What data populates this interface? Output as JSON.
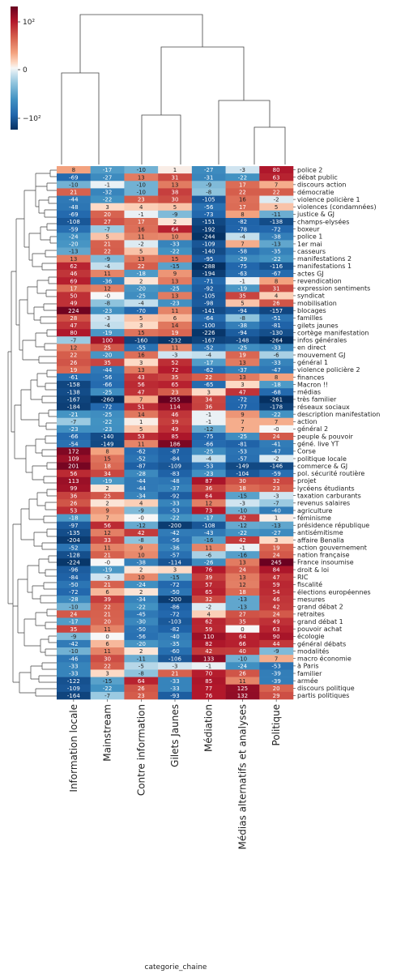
{
  "chart_data": {
    "type": "heatmap",
    "title": "",
    "xlabel": "categorie_chaine",
    "ylabel": "",
    "colorbar": {
      "colormap": "RdBu_r (red positive, blue negative)",
      "scale": "symlog",
      "ticks": [
        "10²",
        "0",
        "−10²"
      ],
      "tick_values": [
        100,
        0,
        -100
      ],
      "high_color": "#67001f",
      "mid_color": "#f7f7f7",
      "low_color": "#053061"
    },
    "columns": [
      "Information locale",
      "Mainstream",
      "Contre information",
      "Gilets Jaunes",
      "Médiation",
      "Médias alternatifs et analyses",
      "Politique"
    ],
    "rows": [
      "police 2",
      "débat public",
      "discours action",
      "démocratie",
      "violence policière 1",
      "violences (condamnées)",
      "justice & GJ",
      "champs-elysées",
      "boxeur",
      "police 1",
      "1er mai",
      "casseurs",
      "manifestations 2",
      "manifestations 1",
      "actes GJ",
      "revendication",
      "expression sentiments",
      "syndicat",
      "mobilisation",
      "blocages",
      "familles",
      "gilets jaunes",
      "cortège manifestation",
      "infos générales",
      "en direct",
      "mouvement GJ",
      "général 1",
      "violence policière 2",
      "finances",
      "Macron !!",
      "médias",
      "très familier",
      "réseaux sociaux",
      "description manifestation",
      "action",
      "général 2",
      "peuple & pouvoir",
      "géné. live YT",
      "Corse",
      "politique locale",
      "commerce & GJ",
      "pol. sécurité routière",
      "projet",
      "lycéens étudiants",
      "taxation carburants",
      "revenus salaires",
      "agriculture",
      "féminisme",
      "présidence république",
      "antisémitisme",
      "affaire Benalla",
      "action gouvernement",
      "nation française",
      "France insoumise",
      "droit & loi",
      "RIC",
      "fiscalité",
      "élections européennes",
      "mesures",
      "grand débat 2",
      "retraites",
      "grand débat 1",
      "pouvoir achat",
      "écologie",
      "général débats",
      "modalités",
      "macro économie",
      "à Paris",
      "familier",
      "armée",
      "discours politique",
      "partis politiques"
    ],
    "values": [
      [
        "8",
        "-17",
        "-10",
        "1",
        "-27",
        "-3",
        "80"
      ],
      [
        "-69",
        "-27",
        "13",
        "31",
        "-31",
        "-22",
        "63"
      ],
      [
        "-10",
        "-1",
        "-10",
        "13",
        "-9",
        "17",
        "7"
      ],
      [
        "21",
        "-32",
        "-10",
        "38",
        "-8",
        "22",
        "22"
      ],
      [
        "-44",
        "-22",
        "23",
        "30",
        "-105",
        "16",
        "-2"
      ],
      [
        "-48",
        "3",
        "4",
        "5",
        "-56",
        "17",
        "5"
      ],
      [
        "-69",
        "20",
        "-1",
        "-9",
        "-73",
        "8",
        "-11"
      ],
      [
        "-108",
        "27",
        "17",
        "2",
        "-151",
        "-82",
        "-138"
      ],
      [
        "-59",
        "-7",
        "16",
        "64",
        "-192",
        "-78",
        "-72"
      ],
      [
        "-24",
        "5",
        "11",
        "10",
        "-244",
        "-4",
        "-38"
      ],
      [
        "-20",
        "21",
        "-2",
        "-33",
        "-109",
        "7",
        "-13"
      ],
      [
        "-13",
        "22",
        "5",
        "-22",
        "-140",
        "-58",
        "-35"
      ],
      [
        "13",
        "-9",
        "13",
        "15",
        "-95",
        "-29",
        "-22"
      ],
      [
        "62",
        "-4",
        "22",
        "-15",
        "-288",
        "-75",
        "-116"
      ],
      [
        "46",
        "11",
        "-18",
        "9",
        "-194",
        "-63",
        "-67"
      ],
      [
        "69",
        "-36",
        "2",
        "13",
        "-71",
        "-1",
        "8"
      ],
      [
        "17",
        "12",
        "-20",
        "-25",
        "-92",
        "-19",
        "31"
      ],
      [
        "50",
        "-0",
        "-25",
        "13",
        "-105",
        "35",
        "4"
      ],
      [
        "49",
        "-8",
        "-4",
        "-23",
        "-98",
        "5",
        "26"
      ],
      [
        "224",
        "-23",
        "-70",
        "11",
        "-141",
        "-94",
        "-157"
      ],
      [
        "28",
        "-3",
        "5",
        "6",
        "-64",
        "-8",
        "-51"
      ],
      [
        "47",
        "-4",
        "3",
        "14",
        "-100",
        "-38",
        "-81"
      ],
      [
        "80",
        "-19",
        "15",
        "19",
        "-226",
        "-94",
        "-130"
      ],
      [
        "-7",
        "100",
        "-160",
        "-232",
        "-167",
        "-148",
        "-264"
      ],
      [
        "12",
        "25",
        "-55",
        "11",
        "-52",
        "-25",
        "-33"
      ],
      [
        "22",
        "-20",
        "16",
        "-3",
        "-4",
        "19",
        "-6"
      ],
      [
        "26",
        "35",
        "3",
        "52",
        "-17",
        "13",
        "-33"
      ],
      [
        "19",
        "-44",
        "13",
        "72",
        "-62",
        "-37",
        "-47"
      ],
      [
        "-61",
        "-56",
        "43",
        "35",
        "22",
        "13",
        "8"
      ],
      [
        "-158",
        "-66",
        "56",
        "65",
        "-65",
        "3",
        "-18"
      ],
      [
        "-138",
        "-25",
        "47",
        "23",
        "3",
        "47",
        "-68"
      ],
      [
        "-167",
        "-260",
        "7",
        "255",
        "34",
        "-72",
        "-261"
      ],
      [
        "-184",
        "-72",
        "51",
        "114",
        "36",
        "-77",
        "-178"
      ],
      [
        "-21",
        "-25",
        "14",
        "46",
        "-1",
        "9",
        "-22"
      ],
      [
        "-7",
        "-22",
        "1",
        "39",
        "-1",
        "7",
        "7"
      ],
      [
        "-23",
        "-23",
        "5",
        "49",
        "-12",
        "7",
        "-0"
      ],
      [
        "-66",
        "-140",
        "53",
        "85",
        "-75",
        "-25",
        "24"
      ],
      [
        "-54",
        "-149",
        "11",
        "186",
        "-66",
        "-81",
        "-41"
      ],
      [
        "172",
        "8",
        "-62",
        "-87",
        "-25",
        "-53",
        "-47"
      ],
      [
        "109",
        "15",
        "-52",
        "-84",
        "-4",
        "-57",
        "-2"
      ],
      [
        "201",
        "18",
        "-87",
        "-109",
        "-53",
        "-149",
        "-146"
      ],
      [
        "56",
        "34",
        "-28",
        "-83",
        "-23",
        "-104",
        "-59"
      ],
      [
        "113",
        "-19",
        "-44",
        "-48",
        "87",
        "30",
        "32"
      ],
      [
        "99",
        "2",
        "-44",
        "-37",
        "36",
        "18",
        "23"
      ],
      [
        "36",
        "25",
        "-34",
        "-92",
        "64",
        "-15",
        "-3"
      ],
      [
        "26",
        "2",
        "4",
        "-33",
        "12",
        "-3",
        "-7"
      ],
      [
        "53",
        "9",
        "-9",
        "-53",
        "73",
        "-10",
        "-40"
      ],
      [
        "-18",
        "7",
        "-0",
        "-22",
        "-17",
        "42",
        "1"
      ],
      [
        "-97",
        "56",
        "-12",
        "-200",
        "-108",
        "-12",
        "-13"
      ],
      [
        "-135",
        "12",
        "42",
        "-42",
        "-43",
        "-22",
        "-27"
      ],
      [
        "-204",
        "33",
        "-8",
        "-56",
        "-16",
        "42",
        "3"
      ],
      [
        "-52",
        "11",
        "9",
        "-36",
        "11",
        "-1",
        "19"
      ],
      [
        "-128",
        "21",
        "10",
        "-57",
        "-6",
        "-16",
        "24"
      ],
      [
        "-224",
        "-0",
        "-38",
        "-114",
        "-26",
        "13",
        "245"
      ],
      [
        "-96",
        "-19",
        "2",
        "3",
        "76",
        "24",
        "84"
      ],
      [
        "-84",
        "-3",
        "10",
        "-15",
        "39",
        "13",
        "47"
      ],
      [
        "-50",
        "21",
        "-24",
        "-72",
        "57",
        "12",
        "59"
      ],
      [
        "-72",
        "6",
        "2",
        "-50",
        "65",
        "18",
        "54"
      ],
      [
        "-28",
        "39",
        "-34",
        "-200",
        "32",
        "-13",
        "46"
      ],
      [
        "-10",
        "22",
        "-22",
        "-86",
        "-2",
        "-13",
        "42"
      ],
      [
        "24",
        "21",
        "-45",
        "-72",
        "4",
        "27",
        "24"
      ],
      [
        "-17",
        "20",
        "-30",
        "-103",
        "62",
        "35",
        "49"
      ],
      [
        "35",
        "11",
        "-50",
        "-82",
        "59",
        "0",
        "63"
      ],
      [
        "-9",
        "0",
        "-56",
        "-40",
        "110",
        "64",
        "90"
      ],
      [
        "-42",
        "6",
        "-20",
        "-35",
        "82",
        "66",
        "44"
      ],
      [
        "-10",
        "11",
        "2",
        "-60",
        "42",
        "40",
        "-9"
      ],
      [
        "-46",
        "30",
        "-11",
        "-106",
        "133",
        "-10",
        "7"
      ],
      [
        "-33",
        "22",
        "-5",
        "-3",
        "-1",
        "-24",
        "-53"
      ],
      [
        "-33",
        "3",
        "-8",
        "21",
        "70",
        "26",
        "-39"
      ],
      [
        "-122",
        "-15",
        "64",
        "-33",
        "85",
        "11",
        "-39"
      ],
      [
        "-109",
        "-22",
        "26",
        "-33",
        "77",
        "125",
        "20"
      ],
      [
        "-164",
        "-7",
        "23",
        "-93",
        "76",
        "132",
        "29"
      ]
    ],
    "dendrograms": {
      "columns": "hierarchical clustering tree above columns",
      "rows": "hierarchical clustering tree left of rows"
    }
  }
}
